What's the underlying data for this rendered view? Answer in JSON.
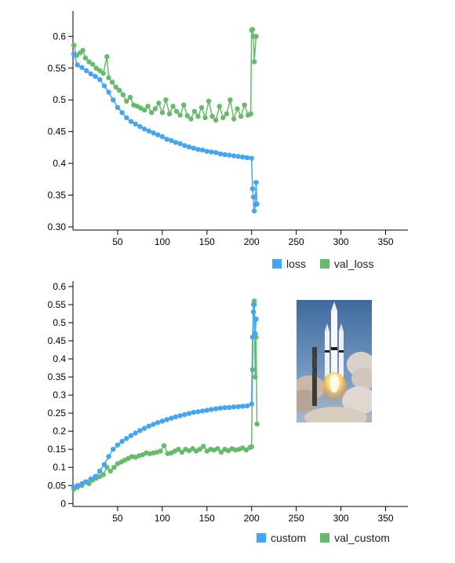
{
  "colors": {
    "blue": "#42a5f5",
    "green": "#66bb6a"
  },
  "chart_data": [
    {
      "type": "line",
      "title": "",
      "xlabel": "",
      "ylabel": "",
      "xlim": [
        0,
        375
      ],
      "ylim": [
        0.295,
        0.64
      ],
      "x_ticks": [
        "50",
        "100",
        "150",
        "200",
        "250",
        "300",
        "350"
      ],
      "y_ticks": [
        "0.30",
        "0.35",
        "0.4",
        "0.45",
        "0.5",
        "0.55",
        "0.6"
      ],
      "legend_position": "bottom-right",
      "series": [
        {
          "name": "loss",
          "color": "#42a5f5",
          "points": [
            [
              1,
              0.572
            ],
            [
              5,
              0.555
            ],
            [
              10,
              0.551
            ],
            [
              15,
              0.546
            ],
            [
              20,
              0.541
            ],
            [
              25,
              0.537
            ],
            [
              30,
              0.532
            ],
            [
              35,
              0.522
            ],
            [
              40,
              0.512
            ],
            [
              45,
              0.5
            ],
            [
              50,
              0.488
            ],
            [
              55,
              0.48
            ],
            [
              60,
              0.472
            ],
            [
              65,
              0.466
            ],
            [
              70,
              0.462
            ],
            [
              75,
              0.458
            ],
            [
              80,
              0.454
            ],
            [
              85,
              0.451
            ],
            [
              90,
              0.448
            ],
            [
              95,
              0.445
            ],
            [
              100,
              0.442
            ],
            [
              105,
              0.438
            ],
            [
              110,
              0.436
            ],
            [
              115,
              0.433
            ],
            [
              120,
              0.431
            ],
            [
              125,
              0.428
            ],
            [
              130,
              0.426
            ],
            [
              135,
              0.424
            ],
            [
              140,
              0.422
            ],
            [
              145,
              0.421
            ],
            [
              150,
              0.419
            ],
            [
              155,
              0.418
            ],
            [
              160,
              0.417
            ],
            [
              165,
              0.415
            ],
            [
              170,
              0.414
            ],
            [
              175,
              0.413
            ],
            [
              180,
              0.412
            ],
            [
              185,
              0.411
            ],
            [
              190,
              0.41
            ],
            [
              195,
              0.409
            ],
            [
              200,
              0.408
            ],
            [
              201,
              0.36
            ],
            [
              202,
              0.347
            ],
            [
              203,
              0.325
            ],
            [
              204,
              0.335
            ],
            [
              205,
              0.37
            ],
            [
              206,
              0.336
            ]
          ]
        },
        {
          "name": "val_loss",
          "color": "#66bb6a",
          "points": [
            [
              1,
              0.586
            ],
            [
              4,
              0.57
            ],
            [
              8,
              0.574
            ],
            [
              11,
              0.578
            ],
            [
              14,
              0.566
            ],
            [
              18,
              0.56
            ],
            [
              22,
              0.556
            ],
            [
              26,
              0.55
            ],
            [
              30,
              0.546
            ],
            [
              34,
              0.542
            ],
            [
              38,
              0.568
            ],
            [
              40,
              0.535
            ],
            [
              44,
              0.528
            ],
            [
              48,
              0.52
            ],
            [
              52,
              0.515
            ],
            [
              56,
              0.508
            ],
            [
              60,
              0.498
            ],
            [
              64,
              0.504
            ],
            [
              68,
              0.492
            ],
            [
              72,
              0.49
            ],
            [
              76,
              0.487
            ],
            [
              80,
              0.484
            ],
            [
              84,
              0.49
            ],
            [
              88,
              0.48
            ],
            [
              92,
              0.486
            ],
            [
              96,
              0.495
            ],
            [
              100,
              0.48
            ],
            [
              104,
              0.5
            ],
            [
              108,
              0.478
            ],
            [
              112,
              0.49
            ],
            [
              116,
              0.482
            ],
            [
              120,
              0.476
            ],
            [
              124,
              0.492
            ],
            [
              128,
              0.475
            ],
            [
              132,
              0.47
            ],
            [
              136,
              0.482
            ],
            [
              140,
              0.474
            ],
            [
              144,
              0.488
            ],
            [
              148,
              0.472
            ],
            [
              152,
              0.498
            ],
            [
              156,
              0.474
            ],
            [
              160,
              0.468
            ],
            [
              164,
              0.49
            ],
            [
              168,
              0.472
            ],
            [
              172,
              0.478
            ],
            [
              176,
              0.5
            ],
            [
              180,
              0.47
            ],
            [
              184,
              0.486
            ],
            [
              188,
              0.474
            ],
            [
              192,
              0.492
            ],
            [
              196,
              0.476
            ],
            [
              199,
              0.478
            ],
            [
              200,
              0.61
            ],
            [
              201,
              0.611
            ],
            [
              202,
              0.6
            ],
            [
              203,
              0.56
            ],
            [
              205,
              0.6
            ]
          ]
        }
      ]
    },
    {
      "type": "line",
      "title": "",
      "xlabel": "",
      "ylabel": "",
      "xlim": [
        0,
        375
      ],
      "ylim": [
        -0.008,
        0.615
      ],
      "x_ticks": [
        "50",
        "100",
        "150",
        "200",
        "250",
        "300",
        "350"
      ],
      "y_ticks": [
        "0",
        "0.05",
        "0.1",
        "0.15",
        "0.2",
        "0.25",
        "0.3",
        "0.35",
        "0.4",
        "0.45",
        "0.5",
        "0.55",
        "0.6"
      ],
      "legend_position": "bottom-right",
      "series": [
        {
          "name": "custom",
          "color": "#42a5f5",
          "points": [
            [
              1,
              0.045
            ],
            [
              5,
              0.05
            ],
            [
              10,
              0.055
            ],
            [
              15,
              0.06
            ],
            [
              20,
              0.068
            ],
            [
              25,
              0.075
            ],
            [
              30,
              0.09
            ],
            [
              35,
              0.108
            ],
            [
              40,
              0.13
            ],
            [
              45,
              0.15
            ],
            [
              50,
              0.162
            ],
            [
              55,
              0.172
            ],
            [
              60,
              0.18
            ],
            [
              65,
              0.188
            ],
            [
              70,
              0.195
            ],
            [
              75,
              0.202
            ],
            [
              80,
              0.208
            ],
            [
              85,
              0.214
            ],
            [
              90,
              0.219
            ],
            [
              95,
              0.224
            ],
            [
              100,
              0.228
            ],
            [
              105,
              0.232
            ],
            [
              110,
              0.236
            ],
            [
              115,
              0.24
            ],
            [
              120,
              0.243
            ],
            [
              125,
              0.246
            ],
            [
              130,
              0.249
            ],
            [
              135,
              0.252
            ],
            [
              140,
              0.254
            ],
            [
              145,
              0.256
            ],
            [
              150,
              0.258
            ],
            [
              155,
              0.26
            ],
            [
              160,
              0.262
            ],
            [
              165,
              0.264
            ],
            [
              170,
              0.265
            ],
            [
              175,
              0.266
            ],
            [
              180,
              0.267
            ],
            [
              185,
              0.268
            ],
            [
              190,
              0.269
            ],
            [
              195,
              0.27
            ],
            [
              200,
              0.275
            ],
            [
              201,
              0.46
            ],
            [
              202,
              0.53
            ],
            [
              203,
              0.55
            ],
            [
              204,
              0.47
            ],
            [
              205,
              0.51
            ]
          ]
        },
        {
          "name": "val_custom",
          "color": "#66bb6a",
          "points": [
            [
              1,
              0.04
            ],
            [
              5,
              0.045
            ],
            [
              10,
              0.05
            ],
            [
              14,
              0.06
            ],
            [
              18,
              0.055
            ],
            [
              22,
              0.065
            ],
            [
              26,
              0.07
            ],
            [
              30,
              0.075
            ],
            [
              34,
              0.08
            ],
            [
              38,
              0.1
            ],
            [
              42,
              0.09
            ],
            [
              46,
              0.1
            ],
            [
              50,
              0.11
            ],
            [
              54,
              0.115
            ],
            [
              58,
              0.12
            ],
            [
              62,
              0.125
            ],
            [
              66,
              0.13
            ],
            [
              70,
              0.128
            ],
            [
              74,
              0.132
            ],
            [
              78,
              0.135
            ],
            [
              82,
              0.14
            ],
            [
              86,
              0.138
            ],
            [
              90,
              0.14
            ],
            [
              94,
              0.142
            ],
            [
              98,
              0.145
            ],
            [
              102,
              0.16
            ],
            [
              106,
              0.138
            ],
            [
              110,
              0.14
            ],
            [
              114,
              0.145
            ],
            [
              118,
              0.15
            ],
            [
              122,
              0.142
            ],
            [
              126,
              0.15
            ],
            [
              130,
              0.146
            ],
            [
              134,
              0.152
            ],
            [
              138,
              0.145
            ],
            [
              142,
              0.15
            ],
            [
              146,
              0.158
            ],
            [
              150,
              0.145
            ],
            [
              154,
              0.15
            ],
            [
              158,
              0.148
            ],
            [
              162,
              0.152
            ],
            [
              166,
              0.142
            ],
            [
              170,
              0.15
            ],
            [
              174,
              0.146
            ],
            [
              178,
              0.152
            ],
            [
              182,
              0.148
            ],
            [
              186,
              0.15
            ],
            [
              190,
              0.154
            ],
            [
              194,
              0.148
            ],
            [
              198,
              0.155
            ],
            [
              200,
              0.157
            ],
            [
              201,
              0.37
            ],
            [
              202,
              0.55
            ],
            [
              203,
              0.56
            ],
            [
              204,
              0.35
            ],
            [
              205,
              0.46
            ],
            [
              206,
              0.22
            ]
          ]
        }
      ]
    }
  ],
  "legends": [
    [
      {
        "label": "loss"
      },
      {
        "label": "val_loss"
      }
    ],
    [
      {
        "label": "custom"
      },
      {
        "label": "val_custom"
      }
    ]
  ],
  "image": {
    "subject": "rocket-launch-photo"
  }
}
